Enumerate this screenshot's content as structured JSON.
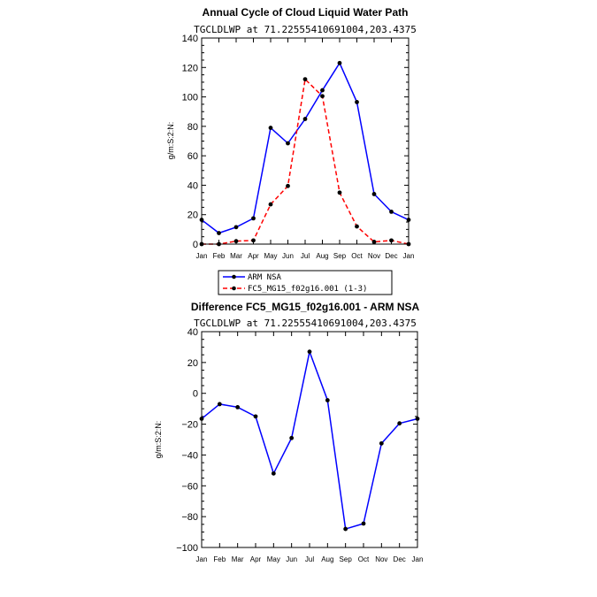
{
  "chart_data": [
    {
      "type": "line",
      "title": "Annual Cycle of Cloud Liquid Water Path",
      "subtitle": "TGCLDLWP  at  71.22555410691004,203.4375",
      "ylabel": "g/m:S:2:N:",
      "xlabel": "",
      "categories": [
        "Jan",
        "Feb",
        "Mar",
        "Apr",
        "May",
        "Jun",
        "Jul",
        "Aug",
        "Sep",
        "Oct",
        "Nov",
        "Dec",
        "Jan"
      ],
      "ylim": [
        0,
        140
      ],
      "yticks": [
        0,
        20,
        40,
        60,
        80,
        100,
        120,
        140
      ],
      "series": [
        {
          "name": "ARM NSA",
          "color": "#0000ff",
          "dash": "solid",
          "values": [
            16.5,
            7.5,
            11.5,
            17.5,
            79,
            68.5,
            85,
            104.5,
            123,
            96.5,
            34,
            22,
            16.5
          ]
        },
        {
          "name": "FC5_MG15_f02g16.001 (1-3)",
          "color": "#ff0000",
          "dash": "dashed",
          "values": [
            0,
            0,
            2,
            2.5,
            27,
            39.5,
            112,
            100.5,
            35,
            12,
            1.5,
            2.5,
            0
          ]
        }
      ],
      "legend": "below"
    },
    {
      "type": "line",
      "title": "Difference FC5_MG15_f02g16.001 - ARM NSA",
      "subtitle": "TGCLDLWP  at  71.22555410691004,203.4375",
      "ylabel": "g/m:S:2:N:",
      "xlabel": "",
      "categories": [
        "Jan",
        "Feb",
        "Mar",
        "Apr",
        "May",
        "Jun",
        "Jul",
        "Aug",
        "Sep",
        "Oct",
        "Nov",
        "Dec",
        "Jan"
      ],
      "ylim": [
        -100,
        40
      ],
      "yticks": [
        -100,
        -80,
        -60,
        -40,
        -20,
        0,
        20,
        40
      ],
      "series": [
        {
          "name": "",
          "color": "#0000ff",
          "dash": "solid",
          "values": [
            -16.5,
            -7,
            -9,
            -15,
            -52,
            -29,
            27,
            -4.5,
            -88,
            -84.5,
            -32.5,
            -19.5,
            -16.5
          ]
        }
      ]
    }
  ]
}
